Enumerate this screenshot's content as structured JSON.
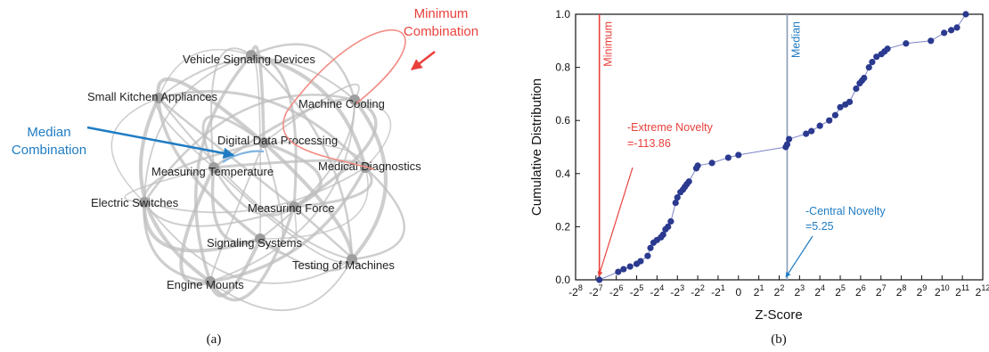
{
  "panel_a": {
    "caption": "(a)",
    "nodes": [
      {
        "id": "vehicle",
        "label": "Vehicle Signaling Devices"
      },
      {
        "id": "kitchen",
        "label": "Small Kitchen Appliances"
      },
      {
        "id": "cooling",
        "label": "Machine Cooling"
      },
      {
        "id": "digital",
        "label": "Digital Data Processing"
      },
      {
        "id": "temp",
        "label": "Measuring Temperature"
      },
      {
        "id": "medical",
        "label": "Medical Diagnostics"
      },
      {
        "id": "switches",
        "label": "Electric Switches"
      },
      {
        "id": "force",
        "label": "Measuring Force"
      },
      {
        "id": "signaling",
        "label": "Signaling Systems"
      },
      {
        "id": "testing",
        "label": "Testing of Machines"
      },
      {
        "id": "engine",
        "label": "Engine Mounts"
      }
    ],
    "annotations": {
      "minimum": {
        "line1": "Minimum",
        "line2": "Combination",
        "color": "#e8413c"
      },
      "median": {
        "line1": "Median",
        "line2": "Combination",
        "color": "#1f7cc4"
      }
    },
    "edge_color": "#bdbdbd",
    "node_color": "#9e9e9e"
  },
  "chart_data": {
    "type": "scatter",
    "caption": "(b)",
    "xlabel": "Z-Score",
    "ylabel": "Cumulative Distribution",
    "x_tick_labels": [
      "-2^8",
      "-2^7",
      "-2^6",
      "-2^5",
      "-2^4",
      "-2^3",
      "-2^2",
      "-2^1",
      "0",
      "2^1",
      "2^2",
      "2^3",
      "2^4",
      "2^5",
      "2^6",
      "2^7",
      "2^8",
      "2^9",
      "2^10",
      "2^11",
      "2^12"
    ],
    "y_ticks": [
      "0.0",
      "0.2",
      "0.4",
      "0.6",
      "0.8",
      "1.0"
    ],
    "ylim": [
      0,
      1
    ],
    "x_scale": "symmetric-log2",
    "point_color": "#2b3a8f",
    "line_color": "#7d85c7",
    "series": [
      {
        "points": [
          [
            -113.86,
            0.0
          ],
          [
            -60,
            0.03
          ],
          [
            -50,
            0.04
          ],
          [
            -40,
            0.05
          ],
          [
            -32,
            0.06
          ],
          [
            -28,
            0.07
          ],
          [
            -22,
            0.09
          ],
          [
            -20,
            0.12
          ],
          [
            -18,
            0.14
          ],
          [
            -16,
            0.15
          ],
          [
            -14,
            0.16
          ],
          [
            -13,
            0.17
          ],
          [
            -12,
            0.19
          ],
          [
            -11,
            0.2
          ],
          [
            -10,
            0.22
          ],
          [
            -8.5,
            0.29
          ],
          [
            -8,
            0.31
          ],
          [
            -7.2,
            0.33
          ],
          [
            -6.6,
            0.34
          ],
          [
            -6.2,
            0.35
          ],
          [
            -5.8,
            0.36
          ],
          [
            -5.4,
            0.37
          ],
          [
            -4.2,
            0.42
          ],
          [
            -2,
            0.43
          ],
          [
            -1.3,
            0.44
          ],
          [
            -0.5,
            0.46
          ],
          [
            0,
            0.47
          ],
          [
            5.0,
            0.5
          ],
          [
            5.25,
            0.51
          ],
          [
            5.6,
            0.53
          ],
          [
            10,
            0.55
          ],
          [
            12,
            0.56
          ],
          [
            16,
            0.58
          ],
          [
            22,
            0.6
          ],
          [
            27,
            0.62
          ],
          [
            32,
            0.65
          ],
          [
            38,
            0.66
          ],
          [
            44,
            0.67
          ],
          [
            55,
            0.72
          ],
          [
            62,
            0.74
          ],
          [
            67,
            0.75
          ],
          [
            72,
            0.76
          ],
          [
            85,
            0.8
          ],
          [
            95,
            0.82
          ],
          [
            110,
            0.84
          ],
          [
            130,
            0.85
          ],
          [
            145,
            0.86
          ],
          [
            160,
            0.87
          ],
          [
            300,
            0.89
          ],
          [
            700,
            0.9
          ],
          [
            1100,
            0.93
          ],
          [
            1400,
            0.94
          ],
          [
            1700,
            0.95
          ],
          [
            2300,
            1.0
          ]
        ]
      }
    ],
    "markers": {
      "minimum": {
        "label": "Minimum",
        "x": -113.86,
        "color": "#e8413c"
      },
      "median": {
        "label": "Median",
        "x": 5.25,
        "color": "#8a9ab8"
      }
    },
    "annotations": {
      "extreme": {
        "line1": "-Extreme Novelty",
        "line2": "=-113.86",
        "color": "#e8413c"
      },
      "central": {
        "line1": "-Central Novelty",
        "line2": "=5.25",
        "color": "#1f7cc4"
      }
    }
  }
}
